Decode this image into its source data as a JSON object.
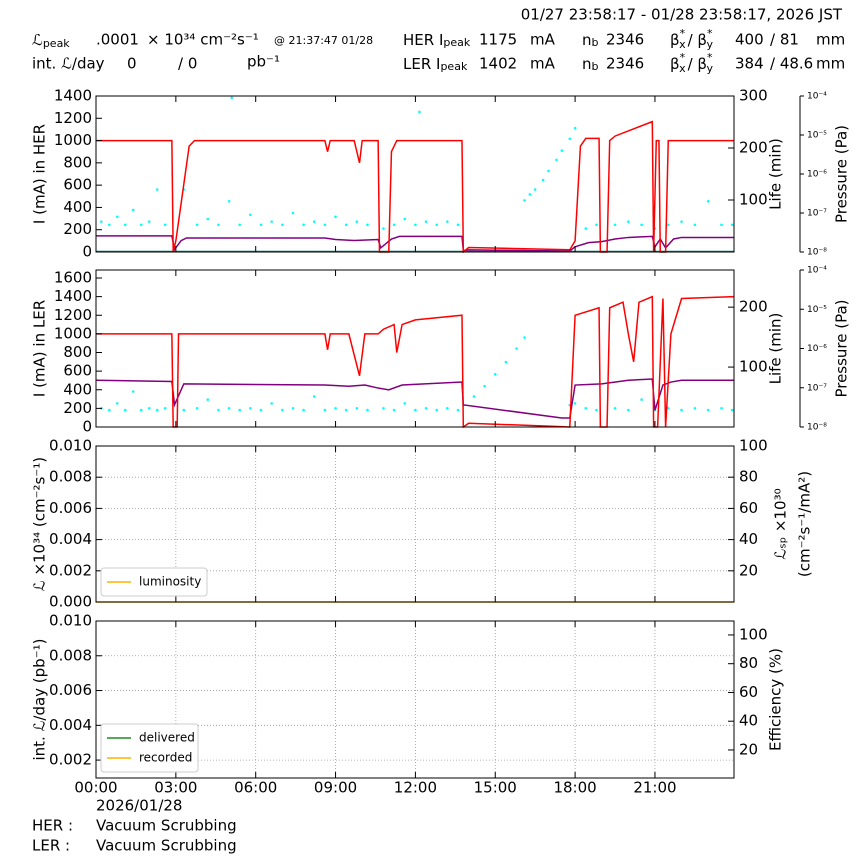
{
  "header": {
    "title": "01/27 23:58:17 - 01/28 23:58:17, 2026 JST",
    "lum_peak": {
      "symbol": "ℒ",
      "sub": "peak",
      "value": ".0001",
      "unit": "× 10³⁴ cm⁻²s⁻¹",
      "time": "@ 21:37:47 01/28"
    },
    "int_lum": {
      "label": "int. ℒ/day",
      "delivered": "0",
      "recorded": "/ 0",
      "unit": "pb⁻¹"
    },
    "her": {
      "label": "HER I",
      "sub": "peak",
      "current": 1175,
      "unit": "mA",
      "nb_label": "n",
      "nb_sub": "b",
      "nb": 2346,
      "beta": [
        "β",
        "*",
        "x",
        "/ β",
        "*",
        "y"
      ],
      "beta_x": 400,
      "beta_y": "/ 81",
      "beta_unit": "mm"
    },
    "ler": {
      "label": "LER I",
      "sub": "peak",
      "current": 1402,
      "unit": "mA",
      "nb_label": "n",
      "nb_sub": "b",
      "nb": 2346,
      "beta": [
        "β",
        "*",
        "x",
        "/ β",
        "*",
        "y"
      ],
      "beta_x": 384,
      "beta_y": "/ 48.6",
      "beta_unit": "mm"
    }
  },
  "footer": {
    "date": "2026/01/28",
    "her_label": "HER :",
    "her_status": "Vacuum Scrubbing",
    "ler_label": "LER :",
    "ler_status": "Vacuum Scrubbing"
  },
  "chart_data": [
    {
      "type": "line",
      "ylabel": "I (mA) in HER",
      "y2label": [
        "Life (min)"
      ],
      "y3label": "Pressure (Pa)",
      "xlim": [
        0,
        23.97
      ],
      "xticks": [
        0,
        3,
        6,
        9,
        12,
        15,
        18,
        21
      ],
      "ylim": [
        0,
        1400
      ],
      "yticks": [
        0,
        200,
        400,
        600,
        800,
        1000,
        1200,
        1400
      ],
      "y2lim": [
        0,
        300
      ],
      "y2ticks": [
        100,
        200,
        300
      ],
      "y3lim": [
        1e-08,
        0.0001
      ],
      "y3log": true,
      "y3ticks": [
        {
          "value": 1e-08,
          "label": "10⁻⁸"
        },
        {
          "value": 1e-07,
          "label": "10⁻⁷"
        },
        {
          "value": 1e-06,
          "label": "10⁻⁶"
        },
        {
          "value": 1e-05,
          "label": "10⁻⁵"
        },
        {
          "value": 0.0001,
          "label": "10⁻⁴"
        }
      ],
      "grid": false,
      "series": [
        {
          "color": "#00ffff",
          "mode": "markers",
          "axis": "y3",
          "x": [
            0.2,
            0.5,
            0.8,
            1.1,
            1.4,
            1.7,
            2.0,
            2.3,
            2.6,
            3.3,
            3.8,
            4.2,
            4.6,
            5.0,
            5.1,
            5.4,
            5.8,
            6.2,
            6.6,
            7.0,
            7.4,
            7.8,
            8.2,
            8.6,
            9.0,
            9.4,
            9.8,
            10.2,
            10.8,
            11.2,
            11.6,
            12.0,
            12.15,
            12.4,
            12.8,
            13.2,
            13.6,
            16.1,
            16.3,
            16.5,
            16.8,
            17.0,
            17.3,
            17.5,
            17.8,
            18.0,
            18.4,
            18.8,
            19.5,
            20.0,
            20.5,
            21.0,
            21.5,
            22.0,
            22.5,
            23.0,
            23.5,
            23.9
          ],
          "values": [
            6e-08,
            5e-08,
            8e-08,
            5e-08,
            1.2e-07,
            5e-08,
            6e-08,
            4e-07,
            5e-08,
            4e-07,
            5e-08,
            7e-08,
            5e-08,
            2e-07,
            9e-05,
            5e-08,
            9e-08,
            5e-08,
            6e-08,
            5e-08,
            1e-07,
            5e-08,
            6e-08,
            5e-08,
            8e-08,
            5e-08,
            6e-08,
            5e-08,
            4e-08,
            5e-08,
            7e-08,
            5e-08,
            3.9e-05,
            6e-08,
            5e-08,
            6e-08,
            5e-08,
            2.1e-07,
            3e-07,
            4e-07,
            7e-07,
            1.2e-06,
            2.3e-06,
            4e-06,
            8e-06,
            1.5e-05,
            4e-08,
            5e-08,
            5e-08,
            6e-08,
            5e-08,
            4e-08,
            5e-08,
            6e-08,
            5e-08,
            2e-07,
            5e-08,
            5e-08
          ]
        },
        {
          "color": "#008080",
          "mode": "lines",
          "axis": "y",
          "x": [
            0,
            23.97
          ],
          "values": [
            5,
            5
          ]
        },
        {
          "color": "#800080",
          "mode": "lines",
          "axis": "y2",
          "x": [
            0,
            2.85,
            2.95,
            3.2,
            3.4,
            8.6,
            9.0,
            9.7,
            10.6,
            10.7,
            11.1,
            11.4,
            13.75,
            13.8,
            14.0,
            17.8,
            18.0,
            18.5,
            19.0,
            19.5,
            20.0,
            20.9,
            21.0,
            21.2,
            21.4,
            21.7,
            22.0,
            23.97
          ],
          "values": [
            31,
            31,
            5,
            22,
            27,
            27,
            24,
            22,
            24,
            8,
            25,
            30,
            30,
            3,
            4,
            2,
            10,
            18,
            20,
            25,
            28,
            30,
            10,
            25,
            8,
            25,
            28,
            28
          ]
        },
        {
          "color": "#ff0000",
          "mode": "lines",
          "axis": "y",
          "x": [
            0,
            2.85,
            2.9,
            3.0,
            3.5,
            3.7,
            8.6,
            8.7,
            8.8,
            9.7,
            9.9,
            10.0,
            10.6,
            10.65,
            11.0,
            11.1,
            11.3,
            13.75,
            13.8,
            14.0,
            17.8,
            18.0,
            18.2,
            18.4,
            18.9,
            18.95,
            19.2,
            19.3,
            19.5,
            20.9,
            20.95,
            21.05,
            21.15,
            21.2,
            21.4,
            21.5,
            23.97
          ],
          "values": [
            1000,
            1000,
            0,
            100,
            950,
            1000,
            1000,
            900,
            1000,
            1000,
            800,
            1000,
            1000,
            0,
            0,
            900,
            1000,
            1000,
            0,
            40,
            20,
            100,
            950,
            1020,
            1020,
            0,
            0,
            1000,
            1040,
            1170,
            0,
            1000,
            1000,
            0,
            0,
            1000,
            1000
          ]
        }
      ]
    },
    {
      "type": "line",
      "ylabel": "I (mA) in LER",
      "y2label": [
        "Life (min)"
      ],
      "y3label": "Pressure (Pa)",
      "xlim": [
        0,
        23.97
      ],
      "xticks": [
        0,
        3,
        6,
        9,
        12,
        15,
        18,
        21
      ],
      "ylim": [
        0,
        1686
      ],
      "yticks": [
        0,
        200,
        400,
        600,
        800,
        1000,
        1200,
        1400,
        1600
      ],
      "y2lim": [
        0,
        262
      ],
      "y2ticks": [
        100,
        200
      ],
      "y3lim": [
        1e-08,
        0.0001
      ],
      "y3log": true,
      "y3ticks": [
        {
          "value": 1e-08,
          "label": "10⁻⁸"
        },
        {
          "value": 1e-07,
          "label": "10⁻⁷"
        },
        {
          "value": 1e-06,
          "label": "10⁻⁶"
        },
        {
          "value": 1e-05,
          "label": "10⁻⁵"
        },
        {
          "value": 0.0001,
          "label": "10⁻⁴"
        }
      ],
      "grid": false,
      "series": [
        {
          "color": "#00ffff",
          "mode": "markers",
          "axis": "y3",
          "x": [
            0.2,
            0.5,
            0.8,
            1.1,
            1.4,
            1.7,
            2.0,
            2.3,
            2.6,
            3.3,
            3.8,
            4.2,
            4.6,
            5.0,
            5.4,
            5.8,
            6.2,
            6.6,
            7.0,
            7.4,
            7.8,
            8.2,
            8.6,
            9.0,
            9.4,
            9.8,
            10.2,
            10.8,
            11.2,
            11.6,
            12.0,
            12.4,
            12.8,
            13.2,
            13.6,
            13.8,
            14.2,
            14.6,
            15.0,
            15.4,
            15.8,
            16.1,
            17.8,
            18.0,
            18.4,
            18.8,
            19.5,
            20.0,
            20.5,
            21.0,
            21.5,
            22.0,
            22.5,
            23.0,
            23.5,
            23.9
          ],
          "values": [
            3e-08,
            2.7e-08,
            4e-08,
            2.7e-08,
            8e-08,
            2.7e-08,
            3e-08,
            2.7e-08,
            3e-08,
            2.7e-08,
            3e-08,
            5e-08,
            2.7e-08,
            3e-08,
            2.7e-08,
            3e-08,
            2.7e-08,
            4e-08,
            2.7e-08,
            3e-08,
            2.7e-08,
            6e-08,
            2.7e-08,
            3e-08,
            2.7e-08,
            3e-08,
            2.7e-08,
            3e-08,
            2.7e-08,
            4e-08,
            2.7e-08,
            3e-08,
            2.7e-08,
            3e-08,
            2.7e-08,
            3.6e-08,
            6e-08,
            1.1e-07,
            2.2e-07,
            4.5e-07,
            1e-06,
            1.9e-06,
            3.6e-08,
            4e-08,
            3e-08,
            2.7e-08,
            3e-08,
            2.7e-08,
            5e-08,
            2.7e-08,
            3e-08,
            2.7e-08,
            3e-08,
            2.7e-08,
            3e-08,
            2.7e-08
          ]
        },
        {
          "color": "#800080",
          "mode": "lines",
          "axis": "y2",
          "x": [
            0,
            2.85,
            2.95,
            3.3,
            8.6,
            9.5,
            10.1,
            10.6,
            11.0,
            11.5,
            13.75,
            13.8,
            17.5,
            17.8,
            18.0,
            19.0,
            20.0,
            20.9,
            21.0,
            21.3,
            21.6,
            22.0,
            23.97
          ],
          "values": [
            78,
            76,
            37,
            72,
            70,
            68,
            70,
            65,
            62,
            70,
            75,
            37,
            15,
            15,
            70,
            72,
            78,
            80,
            28,
            70,
            75,
            78,
            78
          ]
        },
        {
          "color": "#ff0000",
          "mode": "lines",
          "axis": "y",
          "x": [
            0,
            2.85,
            2.9,
            3.05,
            3.1,
            8.6,
            8.7,
            8.8,
            9.5,
            9.9,
            10.1,
            10.6,
            10.8,
            11.2,
            11.3,
            11.5,
            12.0,
            13.75,
            13.8,
            14.0,
            17.0,
            17.8,
            18.0,
            18.9,
            18.95,
            19.2,
            19.3,
            19.8,
            20.0,
            20.2,
            20.4,
            20.9,
            20.95,
            21.1,
            21.3,
            21.4,
            21.6,
            22.0,
            23.97
          ],
          "values": [
            1000,
            1000,
            0,
            0,
            1000,
            1000,
            830,
            1000,
            1000,
            550,
            1000,
            1000,
            1050,
            1100,
            800,
            1100,
            1150,
            1200,
            0,
            40,
            10,
            0,
            1200,
            1280,
            0,
            0,
            1280,
            1340,
            1000,
            700,
            1340,
            1400,
            0,
            0,
            1380,
            0,
            1000,
            1380,
            1400
          ]
        }
      ]
    },
    {
      "type": "line",
      "ylabel": "ℒ ×10³⁴ (cm⁻²s⁻¹)",
      "y2label": [
        "ℒₛₚ ×10³⁰",
        "(cm⁻²s⁻¹/mA²)"
      ],
      "xlim": [
        0,
        23.97
      ],
      "xticks": [
        0,
        3,
        6,
        9,
        12,
        15,
        18,
        21
      ],
      "ylim": [
        0,
        0.01
      ],
      "yticks": [
        {
          "value": 0,
          "label": "0.000"
        },
        {
          "value": 0.002,
          "label": "0.002"
        },
        {
          "value": 0.004,
          "label": "0.004"
        },
        {
          "value": 0.006,
          "label": "0.006"
        },
        {
          "value": 0.008,
          "label": "0.008"
        },
        {
          "value": 0.01,
          "label": "0.010"
        }
      ],
      "y2lim": [
        0,
        100
      ],
      "y2ticks": [
        20,
        40,
        60,
        80,
        100
      ],
      "grid": true,
      "legend": "lower left",
      "series": [
        {
          "name": "luminosity",
          "color": "#ffb000",
          "mode": "lines",
          "axis": "y",
          "x": [
            0,
            23.97
          ],
          "values": [
            0,
            0
          ]
        }
      ]
    },
    {
      "type": "line",
      "ylabel": "int. ℒ/day (pb⁻¹)",
      "y2label": [
        "Efficiency (%)"
      ],
      "xlim": [
        0,
        23.97
      ],
      "xticks": [
        {
          "value": 0,
          "label": "00:00"
        },
        {
          "value": 3,
          "label": "03:00"
        },
        {
          "value": 6,
          "label": "06:00"
        },
        {
          "value": 9,
          "label": "09:00"
        },
        {
          "value": 12,
          "label": "12:00"
        },
        {
          "value": 15,
          "label": "15:00"
        },
        {
          "value": 18,
          "label": "18:00"
        },
        {
          "value": 21,
          "label": "21:00"
        }
      ],
      "ylim": [
        0.00097,
        0.01
      ],
      "yticks": [
        {
          "value": 0.002,
          "label": "0.002"
        },
        {
          "value": 0.004,
          "label": "0.004"
        },
        {
          "value": 0.006,
          "label": "0.006"
        },
        {
          "value": 0.008,
          "label": "0.008"
        },
        {
          "value": 0.01,
          "label": "0.010"
        }
      ],
      "y2lim": [
        0.5,
        109.7
      ],
      "y2ticks": [
        20,
        40,
        60,
        80,
        100
      ],
      "grid": true,
      "legend": "lower left",
      "series": [
        {
          "name": "delivered",
          "color": "#228b22",
          "mode": "lines",
          "axis": "y",
          "x": [],
          "values": []
        },
        {
          "name": "recorded",
          "color": "#ffb000",
          "mode": "lines",
          "axis": "y",
          "x": [],
          "values": []
        }
      ]
    }
  ]
}
